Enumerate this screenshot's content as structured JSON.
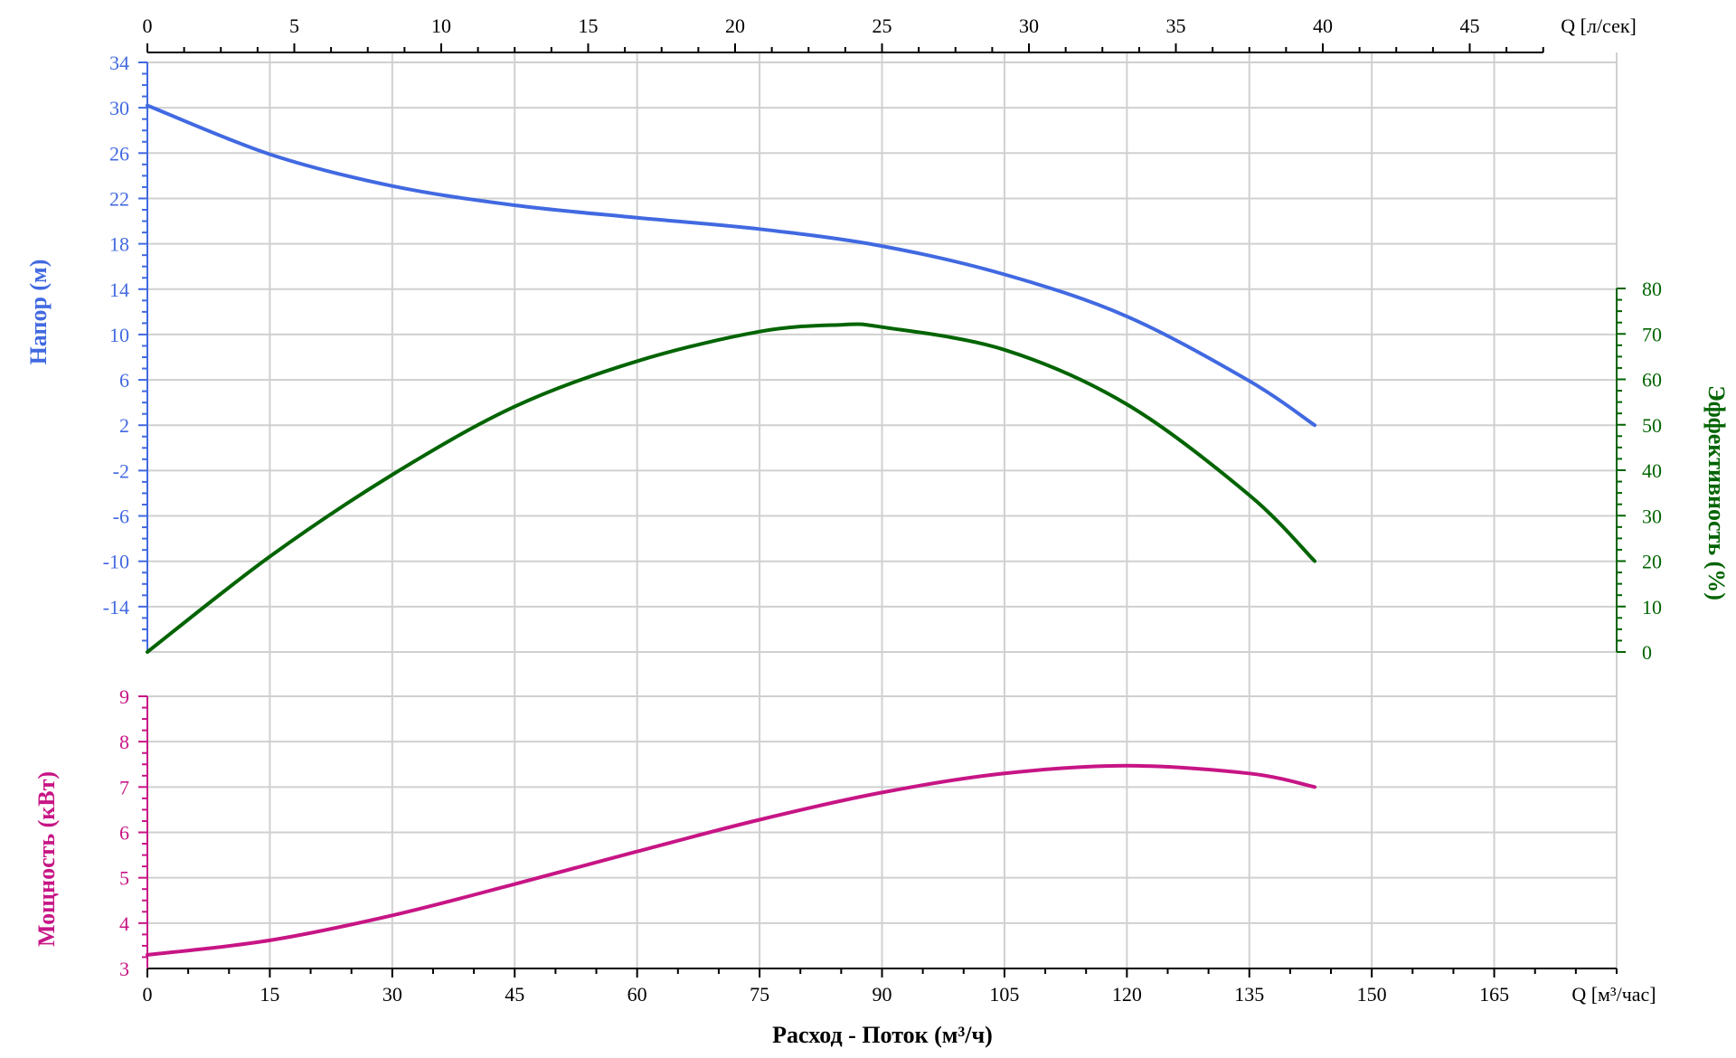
{
  "chart_data": {
    "type": "line",
    "title": "",
    "x_bottom": {
      "label": "Q [м³/час]",
      "ticks": [
        0,
        15,
        30,
        45,
        60,
        75,
        90,
        105,
        120,
        135,
        150,
        165
      ],
      "range": [
        0,
        180
      ]
    },
    "x_top": {
      "label": "Q [л/сек]",
      "ticks": [
        0,
        5,
        10,
        15,
        20,
        25,
        30,
        35,
        40,
        45
      ],
      "range": [
        0,
        50
      ]
    },
    "xlabel": "Расход - Поток (м³/ч)",
    "head_axis": {
      "label": "Напор (м)",
      "ticks": [
        34,
        30,
        26,
        22,
        18,
        14,
        10,
        6,
        2,
        -2,
        -6,
        -10,
        -14
      ],
      "range": [
        -18,
        34
      ],
      "color": "#4169e1"
    },
    "efficiency_axis": {
      "label": "Эффективность (%)",
      "ticks": [
        80,
        70,
        60,
        50,
        40,
        30,
        20,
        10,
        0
      ],
      "range": [
        0,
        80
      ],
      "color": "#006400"
    },
    "power_axis": {
      "label": "Мощность (кВт)",
      "ticks": [
        9,
        8,
        7,
        6,
        5,
        4,
        3
      ],
      "range": [
        3,
        9
      ],
      "color": "#c71585"
    },
    "grid": true,
    "series": [
      {
        "axis": "head",
        "color": "#4169e1",
        "x": [
          0,
          15,
          30,
          45,
          60,
          75,
          90,
          105,
          120,
          135,
          143
        ],
        "y": [
          30.2,
          25.9,
          23.1,
          21.4,
          20.3,
          19.3,
          17.8,
          15.3,
          11.6,
          5.9,
          2.0
        ]
      },
      {
        "axis": "efficiency",
        "color": "#006400",
        "x": [
          0,
          15,
          30,
          45,
          60,
          75,
          85,
          90,
          105,
          120,
          135,
          143
        ],
        "y": [
          0,
          21,
          39,
          54,
          64,
          70.5,
          72,
          71.5,
          66.5,
          54.5,
          34.5,
          20
        ]
      },
      {
        "axis": "power",
        "color": "#c71585",
        "x": [
          0,
          15,
          30,
          45,
          60,
          75,
          90,
          105,
          120,
          135,
          143
        ],
        "y": [
          3.3,
          3.62,
          4.17,
          4.86,
          5.58,
          6.28,
          6.88,
          7.3,
          7.47,
          7.3,
          7.0
        ]
      }
    ]
  }
}
